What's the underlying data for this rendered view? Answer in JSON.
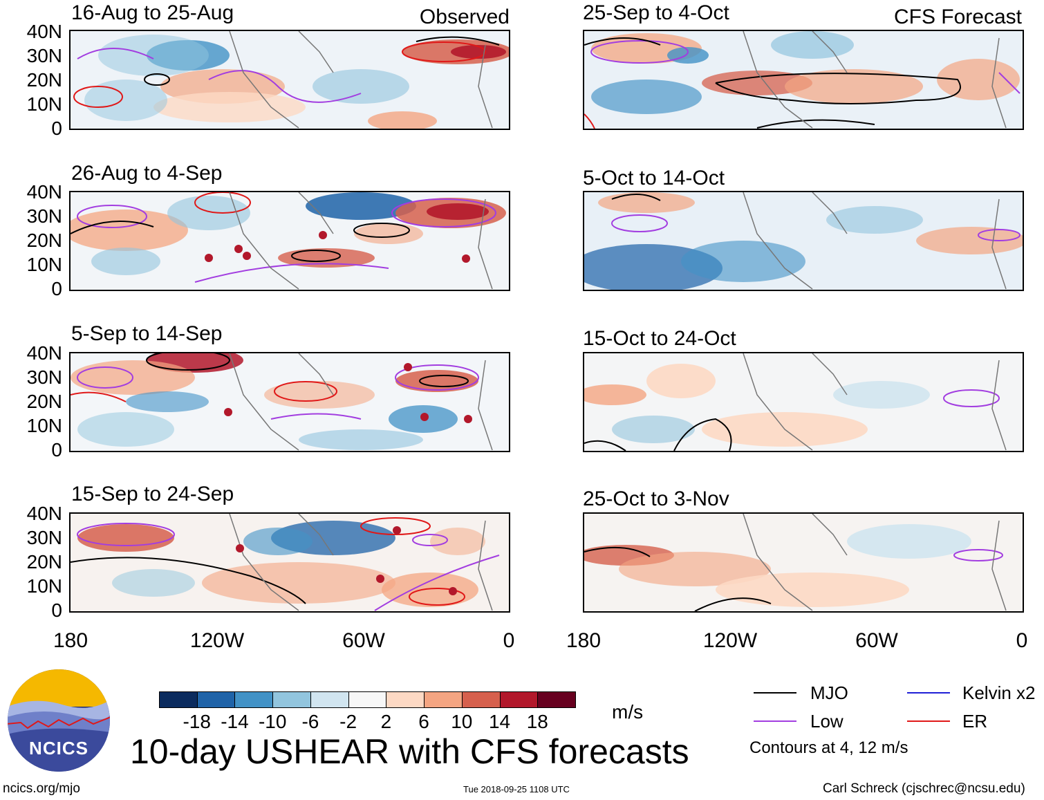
{
  "title": "10-day USHEAR with CFS forecasts",
  "units": "m/s",
  "labels": {
    "observed": "Observed",
    "forecast": "CFS Forecast"
  },
  "latitudes": [
    "40N",
    "30N",
    "20N",
    "10N",
    "0"
  ],
  "longitudes": [
    "180",
    "120W",
    "60W",
    "0"
  ],
  "panels_left": [
    {
      "title": "16-Aug to 25-Aug"
    },
    {
      "title": "26-Aug to 4-Sep"
    },
    {
      "title": "5-Sep to 14-Sep"
    },
    {
      "title": "15-Sep to 24-Sep"
    }
  ],
  "panels_right": [
    {
      "title": "25-Sep to 4-Oct"
    },
    {
      "title": "5-Oct to 14-Oct"
    },
    {
      "title": "15-Oct to 24-Oct"
    },
    {
      "title": "25-Oct to 3-Nov"
    }
  ],
  "colorbar": {
    "colors": [
      "#0b2b5e",
      "#1f63a8",
      "#4292c6",
      "#92c5de",
      "#d1e5f0",
      "#f7f7f7",
      "#fdd9c4",
      "#f4a582",
      "#d6604d",
      "#b2182b",
      "#67001f"
    ],
    "ticks": [
      "-18",
      "-14",
      "-10",
      "-6",
      "-2",
      "2",
      "6",
      "10",
      "14",
      "18"
    ]
  },
  "legend": [
    {
      "label": "MJO",
      "color": "#000000"
    },
    {
      "label": "Kelvin x2",
      "color": "#1f1fd6"
    },
    {
      "label": "Low",
      "color": "#a23de0"
    },
    {
      "label": "ER",
      "color": "#e01818"
    }
  ],
  "contour_note": "Contours at 4, 12 m/s",
  "logo_text": "NCICS",
  "footer": {
    "site": "ncics.org/mjo",
    "timestamp": "Tue 2018-09-25 1108 UTC",
    "credit": "Carl Schreck (cjschrec@ncsu.edu)"
  }
}
